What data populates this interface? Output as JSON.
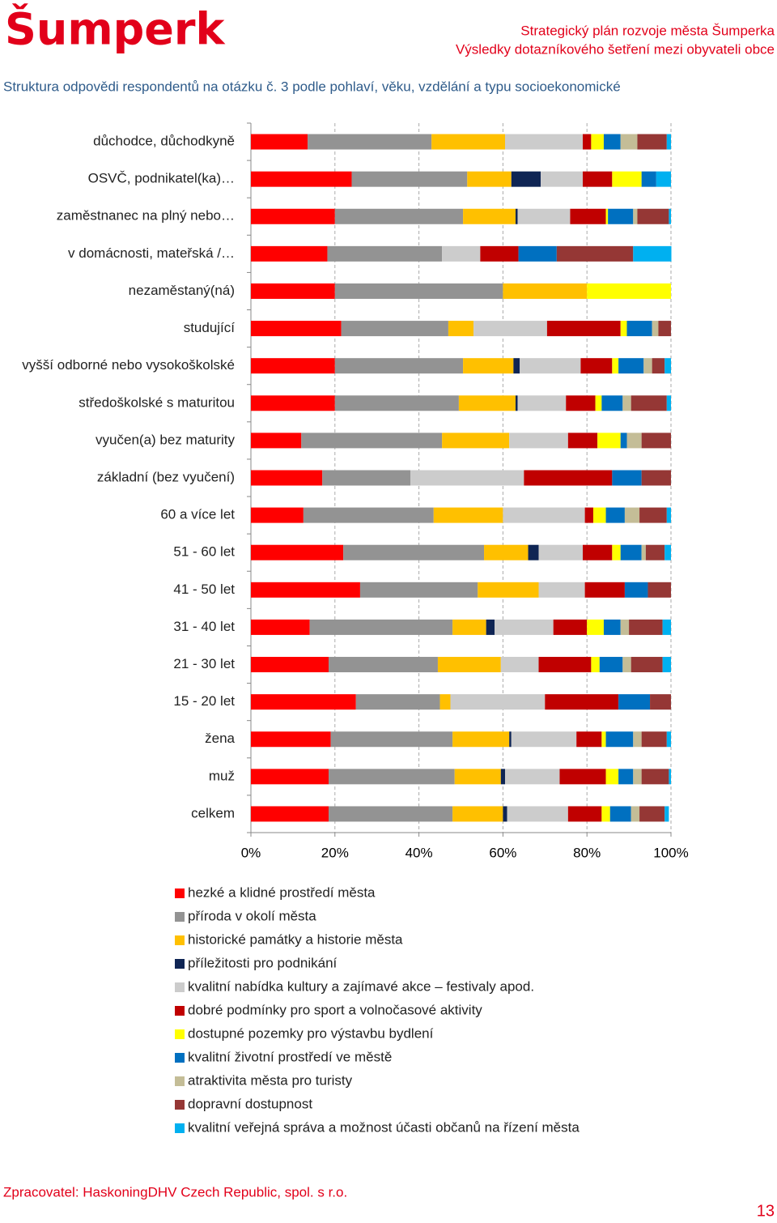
{
  "header": {
    "logo": "Šumperk",
    "line1": "Strategický plán rozvoje města Šumperka",
    "line2": "Výsledky dotazníkového šetření mezi obyvateli obce"
  },
  "subtitle": "Struktura odpovědi respondentů na otázku č. 3 podle pohlaví, věku, vzdělání a typu socioekonomické",
  "chart_data": {
    "type": "stacked-barh",
    "categories": [
      "důchodce, důchodkyně",
      "OSVČ, podnikatel(ka)…",
      "zaměstnanec na plný nebo…",
      "v domácnosti, mateřská /…",
      "nezaměstaný(ná)",
      "studující",
      "vyšší odborné nebo vysokoškolské",
      "středoškolské s maturitou",
      "vyučen(a) bez maturity",
      "základní (bez vyučení)",
      "60 a více let",
      "51 - 60 let",
      "41 - 50 let",
      "31 - 40 let",
      "21 - 30 let",
      "15 - 20 let",
      "žena",
      "muž",
      "celkem"
    ],
    "series": [
      {
        "name": "hezké a klidné prostředí města",
        "color": "#ff0000",
        "values": [
          13.5,
          24,
          20,
          18.2,
          20,
          21.5,
          20,
          20,
          12,
          17,
          12.5,
          22,
          26,
          14,
          18.5,
          25,
          19,
          18.5,
          18.5
        ]
      },
      {
        "name": "příroda v okolí města",
        "color": "#939393",
        "values": [
          29.5,
          27.5,
          30.5,
          27.3,
          40,
          25.5,
          30.5,
          29.5,
          33.5,
          21,
          31,
          33.5,
          28,
          34,
          26,
          20,
          29,
          30,
          29.5
        ]
      },
      {
        "name": "historické památky a historie města",
        "color": "#ffc000",
        "values": [
          17.5,
          10.5,
          12.5,
          0,
          20,
          6,
          12,
          13.5,
          16,
          0,
          16.5,
          10.5,
          14.5,
          8,
          15,
          2.5,
          13.5,
          11,
          12
        ]
      },
      {
        "name": "příležitosti pro podnikání",
        "color": "#0f2554",
        "values": [
          0,
          7,
          0.5,
          0,
          0,
          0,
          1.5,
          0.5,
          0,
          0,
          0,
          2.5,
          0,
          2,
          0,
          0,
          0.5,
          1,
          1
        ]
      },
      {
        "name": "kvalitní nabídka kultury a zajímavé akce – festivaly apod.",
        "color": "#cccccc",
        "values": [
          18.5,
          10,
          12.5,
          9.1,
          0,
          17.5,
          14.5,
          11.5,
          14,
          27,
          19.5,
          10.5,
          11,
          14,
          9,
          22.5,
          15.5,
          13,
          14.5
        ]
      },
      {
        "name": "dobré podmínky pro sport a volnočasové aktivity",
        "color": "#c00000",
        "values": [
          2,
          7,
          8.5,
          9.1,
          0,
          17.5,
          7.5,
          7,
          7,
          21,
          2,
          7,
          9.5,
          8,
          12.5,
          17.5,
          6,
          11,
          8
        ]
      },
      {
        "name": "dostupné pozemky pro výstavbu bydlení",
        "color": "#ffff00",
        "values": [
          3,
          7,
          0.5,
          0,
          20,
          1.5,
          1.5,
          1.5,
          5.5,
          0,
          3,
          2,
          0,
          4,
          2,
          0,
          1,
          3,
          2
        ]
      },
      {
        "name": "kvalitní životní prostředí ve městě",
        "color": "#0070c0",
        "values": [
          4,
          3.5,
          6,
          9.1,
          0,
          6,
          6,
          5,
          1.5,
          7,
          4.5,
          5,
          5.5,
          4,
          5.5,
          7.5,
          6.5,
          3.5,
          5
        ]
      },
      {
        "name": "atraktivita města pro turisty",
        "color": "#c4bd97",
        "values": [
          4,
          0,
          1,
          0,
          0,
          1.5,
          2,
          2,
          3.5,
          0,
          3.5,
          1,
          0,
          2,
          2,
          0,
          2,
          2,
          2
        ]
      },
      {
        "name": "dopravní dostupnost",
        "color": "#953735",
        "values": [
          7,
          0,
          7.5,
          18.2,
          0,
          3,
          3,
          8.5,
          7,
          7,
          6.5,
          4.5,
          5.5,
          8,
          7.5,
          5,
          6,
          6.5,
          6
        ]
      },
      {
        "name": "kvalitní veřejná správa a možnost účasti občanů na řízení města",
        "color": "#00b0f0",
        "values": [
          1,
          3.5,
          0.5,
          9.1,
          0,
          0,
          1.5,
          1,
          0,
          0,
          1,
          1.5,
          0,
          2,
          2,
          0,
          1,
          0.5,
          1
        ]
      }
    ],
    "xlim": [
      0,
      100
    ],
    "xticks": [
      {
        "value": 0,
        "label": "0%"
      },
      {
        "value": 20,
        "label": "20%"
      },
      {
        "value": 40,
        "label": "40%"
      },
      {
        "value": 60,
        "label": "60%"
      },
      {
        "value": 80,
        "label": "80%"
      },
      {
        "value": 100,
        "label": "100%"
      }
    ],
    "grid": true
  },
  "footer": {
    "credit": "Zpracovatel: HaskoningDHV Czech Republic, spol. s r.o.",
    "page": "13"
  }
}
